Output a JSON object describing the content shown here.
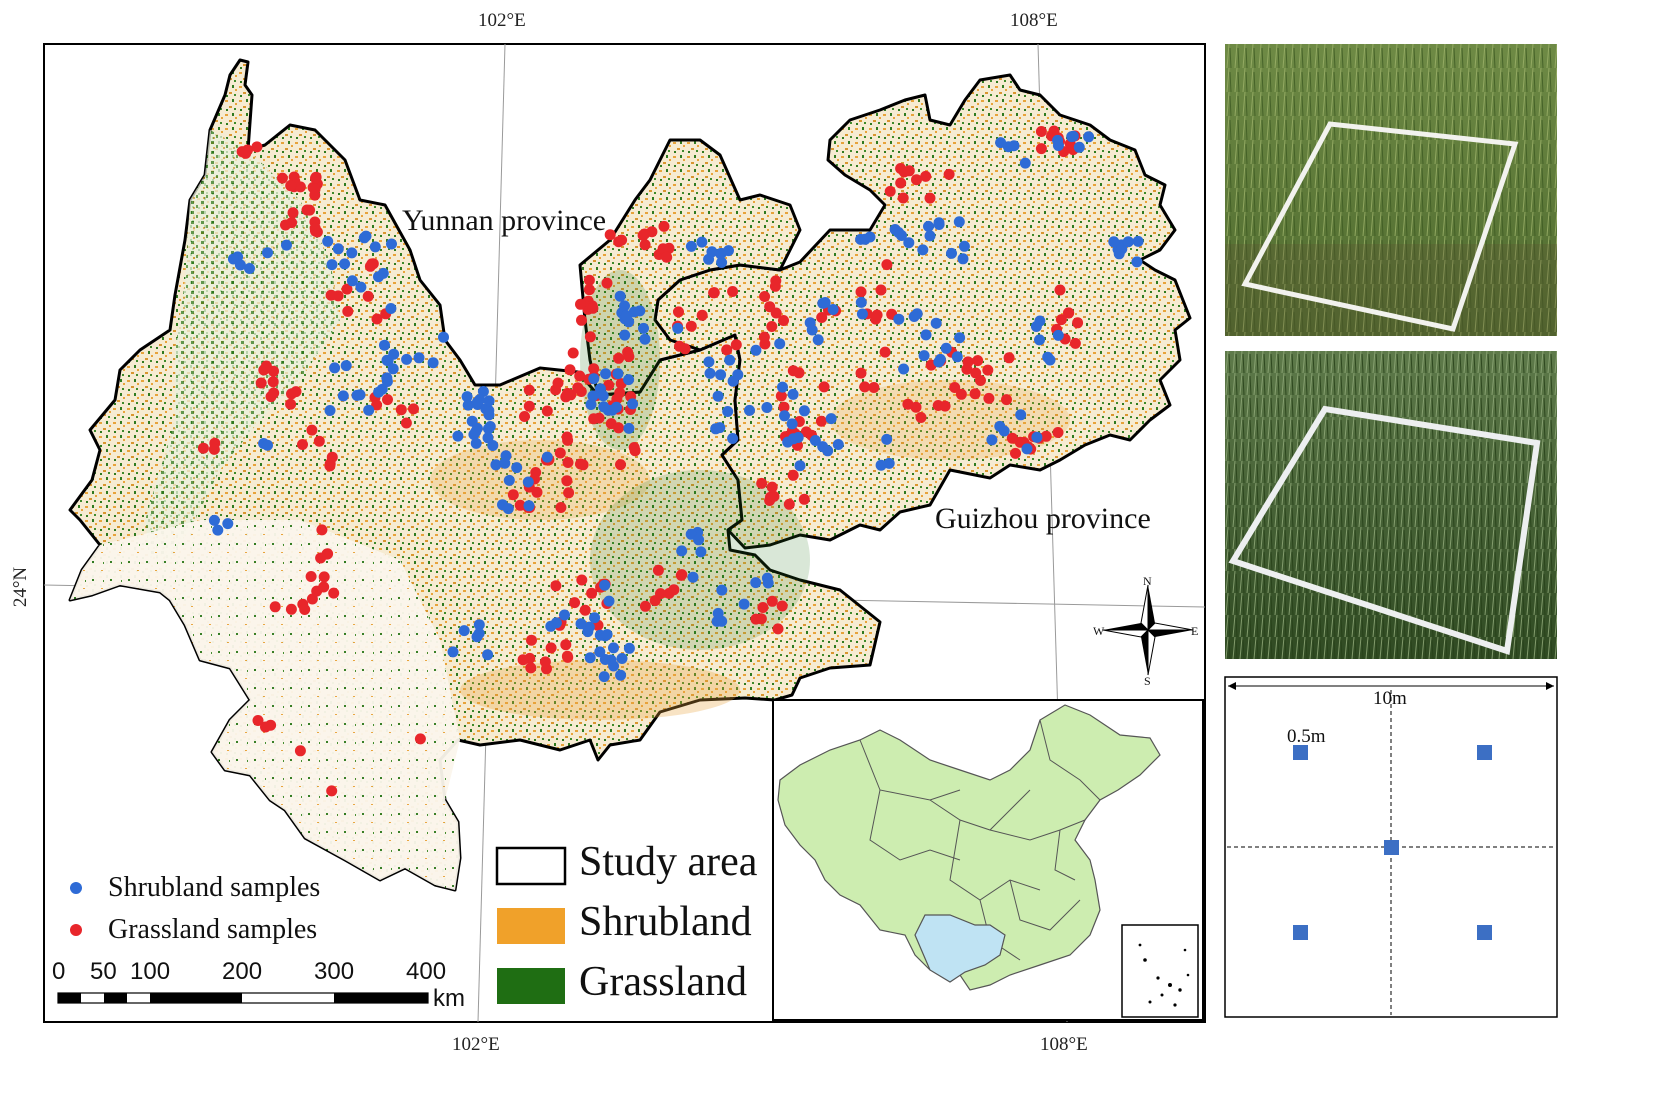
{
  "graticule": {
    "top_lon_1": "102°E",
    "top_lon_2": "108°E",
    "bottom_lon_1": "102°E",
    "bottom_lon_2": "108°E",
    "left_lat": "24°N"
  },
  "map": {
    "yunnan_label": "Yunnan province",
    "guizhou_label": "Guizhou province",
    "colors": {
      "shrubland": "#E8A33A",
      "grassland": "#2F7A1F",
      "shrubland_point": "#2E6BD6",
      "grassland_point": "#E8262B",
      "study_area_outline": "#000000"
    }
  },
  "point_legend": {
    "shrub_label": "Shrubland samples",
    "grass_label": "Grassland samples"
  },
  "box_legend": {
    "study_area": "Study area",
    "shrubland": "Shrubland",
    "grassland": "Grassland"
  },
  "scale_bar": {
    "ticks": [
      "0",
      "50",
      "100",
      "200",
      "300",
      "400"
    ],
    "unit": "km"
  },
  "north_arrow": {
    "n": "N",
    "s": "S",
    "e": "E",
    "w": "W"
  },
  "inset": {
    "china_fill": "#CDEDB0",
    "study_fill": "#BFE3F3"
  },
  "quadrat": {
    "width_label": "10m",
    "sub_label": "0.5m",
    "square_color": "#3C6FC4"
  }
}
